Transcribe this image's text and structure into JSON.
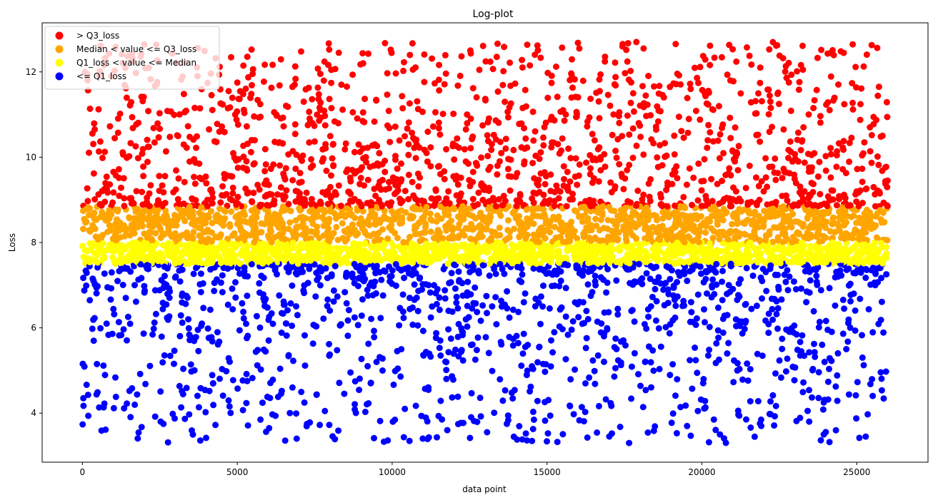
{
  "chart_data": {
    "type": "scatter",
    "title": "Log-plot",
    "xlabel": "data point",
    "ylabel": "Loss",
    "xlim": [
      -1300,
      27300
    ],
    "ylim": [
      2.85,
      13.15
    ],
    "x_ticks": [
      0,
      5000,
      10000,
      15000,
      20000,
      25000
    ],
    "x_tick_labels": [
      "0",
      "5000",
      "10000",
      "15000",
      "20000",
      "25000"
    ],
    "y_ticks": [
      4,
      6,
      8,
      10,
      12
    ],
    "y_tick_labels": [
      "4",
      "6",
      "8",
      "10",
      "12"
    ],
    "grid": false,
    "legend_position": "top-left",
    "n_points": 26000,
    "thresholds": {
      "Q1_loss": 7.5,
      "Median": 8.0,
      "Q3_loss": 8.85
    },
    "series": [
      {
        "name": "> Q3_loss",
        "color": "#ff0000",
        "y_range": [
          8.85,
          12.7
        ]
      },
      {
        "name": "Median < value <= Q3_loss",
        "color": "#ffa500",
        "y_range": [
          8.0,
          8.85
        ]
      },
      {
        "name": "Q1_loss < value <= Median",
        "color": "#ffff00",
        "y_range": [
          7.5,
          8.0
        ]
      },
      {
        "name": "<= Q1_loss",
        "color": "#0000ff",
        "y_range": [
          3.3,
          7.5
        ]
      }
    ]
  }
}
